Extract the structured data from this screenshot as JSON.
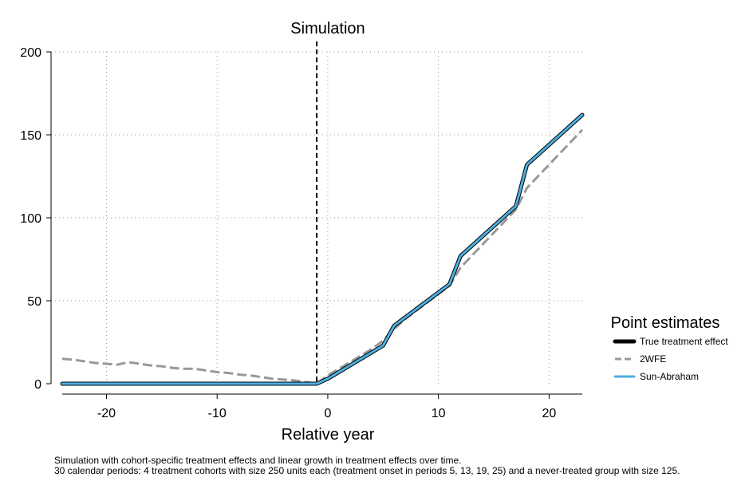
{
  "chart_data": {
    "type": "line",
    "title": "Simulation",
    "xlabel": "Relative year",
    "ylabel": "",
    "xlim": [
      -24,
      23
    ],
    "ylim": [
      0,
      200
    ],
    "xticks": [
      -20,
      -10,
      0,
      10,
      20
    ],
    "yticks": [
      0,
      50,
      100,
      150,
      200
    ],
    "grid": true,
    "reference_line_x": -1,
    "legend": {
      "title": "Point estimates",
      "position": "right",
      "entries": [
        "True treatment effect",
        "2WFE",
        "Sun-Abraham"
      ]
    },
    "series": [
      {
        "name": "True treatment effect",
        "color": "#000000",
        "x": [
          -24,
          -23,
          -22,
          -21,
          -20,
          -19,
          -18,
          -17,
          -16,
          -15,
          -14,
          -13,
          -12,
          -11,
          -10,
          -9,
          -8,
          -7,
          -6,
          -5,
          -4,
          -3,
          -2,
          -1,
          0,
          1,
          2,
          3,
          4,
          5,
          6,
          7,
          8,
          9,
          10,
          11,
          12,
          13,
          14,
          15,
          16,
          17,
          18,
          19,
          20,
          21,
          22,
          23
        ],
        "y": [
          0,
          0,
          0,
          0,
          0,
          0,
          0,
          0,
          0,
          0,
          0,
          0,
          0,
          0,
          0,
          0,
          0,
          0,
          0,
          0,
          0,
          0,
          0,
          0,
          3,
          7,
          11,
          15,
          19,
          23,
          35,
          40,
          45,
          50,
          55,
          60,
          77,
          83,
          89,
          95,
          101,
          107,
          132,
          138,
          144,
          150,
          156,
          162
        ]
      },
      {
        "name": "2WFE",
        "color": "#999999",
        "x": [
          -24,
          -23,
          -22,
          -21,
          -20,
          -19,
          -18,
          -17,
          -16,
          -15,
          -14,
          -13,
          -12,
          -11,
          -10,
          -9,
          -8,
          -7,
          -6,
          -5,
          -4,
          -3,
          -2,
          -1,
          0,
          1,
          2,
          3,
          4,
          5,
          6,
          7,
          8,
          9,
          10,
          11,
          12,
          13,
          14,
          15,
          16,
          17,
          18,
          19,
          20,
          21,
          22,
          23
        ],
        "y": [
          15,
          14.5,
          13.5,
          12.5,
          12,
          11.5,
          13,
          12,
          11,
          10.5,
          9.5,
          9,
          9,
          8,
          7,
          6.5,
          5.5,
          5,
          4,
          3,
          2.5,
          2,
          1,
          0,
          5,
          9,
          13,
          17,
          21,
          26,
          33,
          39,
          44,
          49,
          54,
          59,
          70,
          77,
          84,
          91,
          98,
          105,
          118,
          125,
          132,
          139,
          146,
          153
        ]
      },
      {
        "name": "Sun-Abraham",
        "color": "#4dafe0",
        "x": [
          -24,
          -23,
          -22,
          -21,
          -20,
          -19,
          -18,
          -17,
          -16,
          -15,
          -14,
          -13,
          -12,
          -11,
          -10,
          -9,
          -8,
          -7,
          -6,
          -5,
          -4,
          -3,
          -2,
          -1,
          0,
          1,
          2,
          3,
          4,
          5,
          6,
          7,
          8,
          9,
          10,
          11,
          12,
          13,
          14,
          15,
          16,
          17,
          18,
          19,
          20,
          21,
          22,
          23
        ],
        "y": [
          0,
          0,
          0,
          0,
          0,
          0,
          0,
          0,
          0,
          0,
          0,
          0,
          0,
          0,
          0,
          0,
          0,
          0,
          0,
          0,
          0,
          0,
          0,
          0,
          3,
          7,
          11,
          15,
          19,
          23,
          35,
          40,
          45,
          50,
          55,
          60,
          77,
          83,
          89,
          95,
          101,
          107,
          132,
          138,
          144,
          150,
          156,
          162
        ]
      }
    ],
    "notes": [
      "Simulation with cohort-specific treatment effects and linear growth in treatment effects over time.",
      "30 calendar periods: 4 treatment cohorts with size 250 units each (treatment onset in periods 5, 13, 19, 25) and a never-treated group with size 125."
    ]
  }
}
